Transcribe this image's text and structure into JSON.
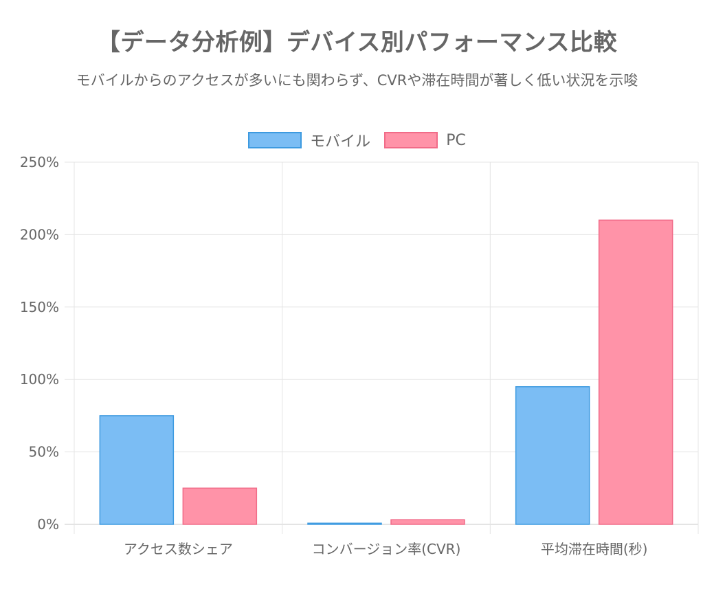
{
  "chart_data": {
    "type": "bar",
    "title": "【データ分析例】デバイス別パフォーマンス比較",
    "subtitle": "モバイルからのアクセスが多いにも関わらず、CVRや滞在時間が著しく低い状況を示唆",
    "categories": [
      "アクセス数シェア",
      "コンバージョン率(CVR)",
      "平均滞在時間(秒)"
    ],
    "series": [
      {
        "name": "モバイル",
        "values": [
          75,
          0.8,
          95
        ],
        "color": "#7bbdf4",
        "border": "#3d9ae0"
      },
      {
        "name": "PC",
        "values": [
          25,
          3.2,
          210
        ],
        "color": "#ff93a8",
        "border": "#f16b88"
      }
    ],
    "ylim": [
      0,
      250
    ],
    "yticks": [
      0,
      50,
      100,
      150,
      200,
      250
    ],
    "ytick_suffix": "%",
    "grid": true,
    "legend_position": "top"
  }
}
